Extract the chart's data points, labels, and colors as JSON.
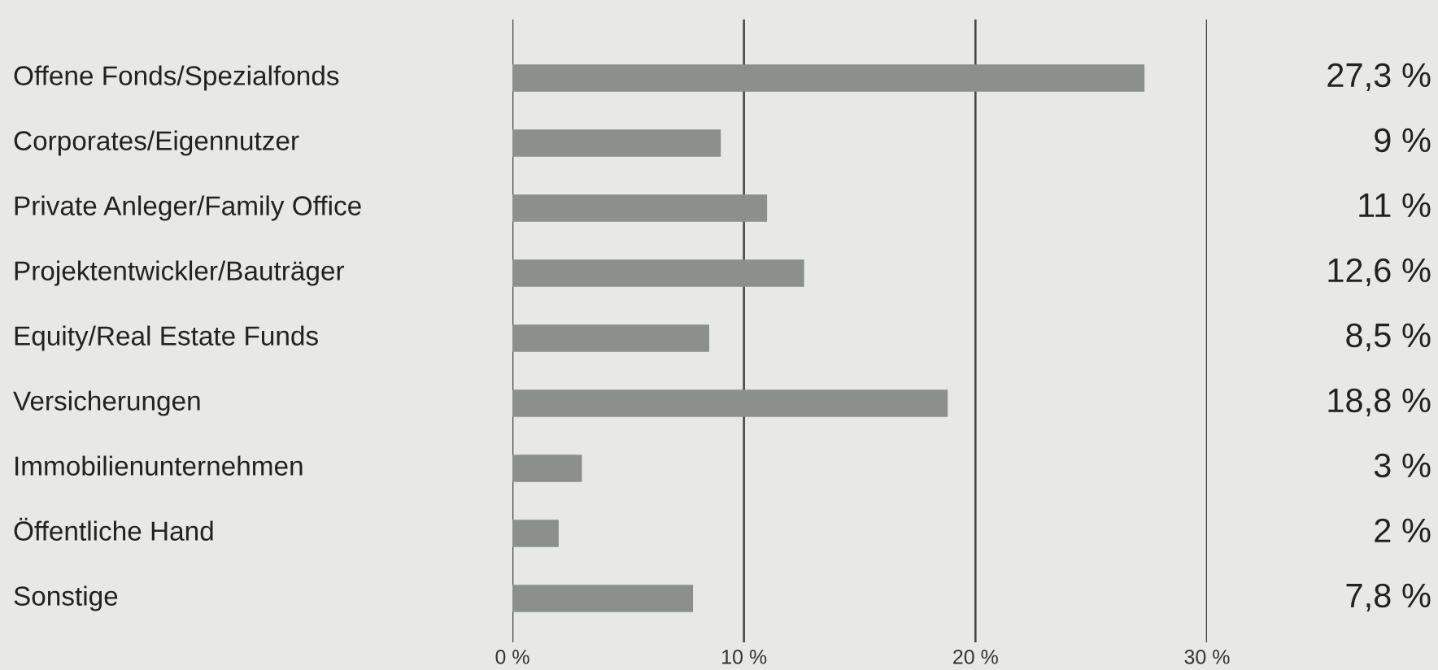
{
  "chart_data": {
    "type": "bar",
    "orientation": "horizontal",
    "categories": [
      "Offene Fonds/Spezialfonds",
      "Corporates/Eigennutzer",
      "Private Anleger/Family Office",
      "Projektentwickler/Bauträger",
      "Equity/Real Estate Funds",
      "Versicherungen",
      "Immobilienunternehmen",
      "Öffentliche Hand",
      "Sonstige"
    ],
    "values": [
      27.3,
      9,
      11,
      12.6,
      8.5,
      18.8,
      3,
      2,
      7.8
    ],
    "value_labels": [
      "27,3 %",
      "9 %",
      "11 %",
      "12,6 %",
      "8,5 %",
      "18,8 %",
      "3 %",
      "2 %",
      "7,8 %"
    ],
    "color": "#8b918a",
    "xlim": [
      0,
      30
    ],
    "xticks": [
      {
        "value": 0,
        "label": "0 %"
      },
      {
        "value": 10,
        "label": "10 %"
      },
      {
        "value": 20,
        "label": "20 %"
      },
      {
        "value": 30,
        "label": "30 %"
      }
    ],
    "grid": "x",
    "legend": false
  }
}
